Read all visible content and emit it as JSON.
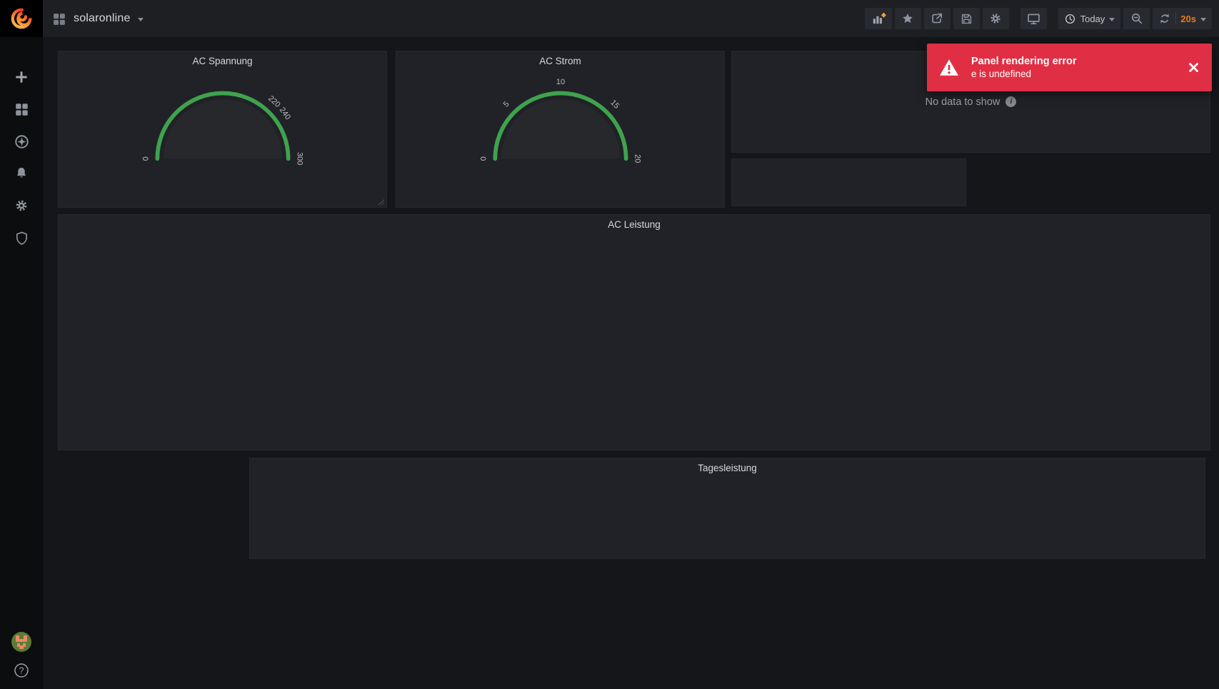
{
  "navbar": {
    "dashboard_title": "solaronline",
    "time_range": "Today",
    "refresh_interval": "20s",
    "icons": [
      "add-panel",
      "star",
      "share",
      "save",
      "settings",
      "cycle-view",
      "clock",
      "zoom-out",
      "refresh"
    ]
  },
  "sidebar": {
    "icons": [
      "grafana-logo",
      "add",
      "dashboards",
      "explore",
      "alerting",
      "configuration",
      "server-admin",
      "avatar",
      "help"
    ]
  },
  "toast": {
    "title": "Panel rendering error",
    "message": "e is undefined",
    "icon": "warning-triangle",
    "close_icon": "close"
  },
  "panels": [
    {
      "title": "AC Spannung",
      "type": "gauge",
      "min": 0,
      "max": 300,
      "ticks": [
        0,
        220,
        240,
        300
      ]
    },
    {
      "title": "AC Strom",
      "type": "gauge",
      "min": 0,
      "max": 20,
      "ticks": [
        0,
        5,
        10,
        15,
        20
      ]
    },
    {
      "title": "",
      "type": "graph",
      "status_text": "No data to show"
    },
    {
      "title": "",
      "type": "panel"
    },
    {
      "title": "AC Leistung",
      "type": "graph"
    },
    {
      "title": "Tagesleistung",
      "type": "graph"
    }
  ],
  "colors": {
    "accent_orange": "#eb7b18",
    "plus_orange": "#f5a13d",
    "error_red": "#e02f44",
    "gauge_green": "#3fa34d",
    "panel_bg": "#212227",
    "page_bg": "#151619"
  },
  "chart_data": [
    {
      "type": "gauge",
      "title": "AC Spannung",
      "min": 0,
      "max": 300,
      "tick_labels": [
        0,
        220,
        240,
        300
      ],
      "value": null,
      "arc_color": "#3fa34d"
    },
    {
      "type": "gauge",
      "title": "AC Strom",
      "min": 0,
      "max": 20,
      "tick_labels": [
        0,
        5,
        10,
        15,
        20
      ],
      "value": null,
      "arc_color": "#3fa34d"
    }
  ]
}
